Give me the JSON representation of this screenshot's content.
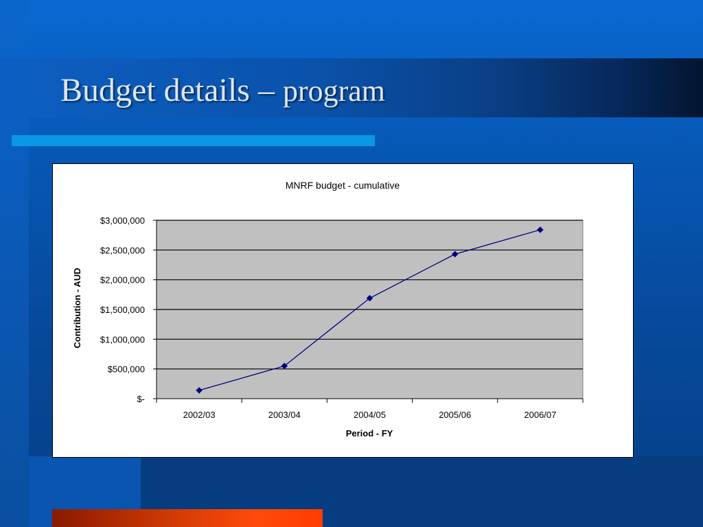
{
  "slide": {
    "title_main": "Budget details – ",
    "title_tail": "program"
  },
  "colors": {
    "line": "#000080",
    "plot_bg": "#c0c0c0",
    "accent": "#0a97e6"
  },
  "chart_data": {
    "type": "line",
    "title": "MNRF budget - cumulative",
    "xlabel": "Period - FY",
    "ylabel": "Contribution - AUD",
    "categories": [
      "2002/03",
      "2003/04",
      "2004/05",
      "2005/06",
      "2006/07"
    ],
    "values": [
      140000,
      550000,
      1690000,
      2430000,
      2840000
    ],
    "ylim": [
      0,
      3000000
    ],
    "yticks": [
      0,
      500000,
      1000000,
      1500000,
      2000000,
      2500000,
      3000000
    ],
    "ytick_labels": [
      "$-",
      "$500,000",
      "$1,000,000",
      "$1,500,000",
      "$2,000,000",
      "$2,500,000",
      "$3,000,000"
    ],
    "grid": "horizontal",
    "marker": "diamond",
    "legend": "none"
  }
}
